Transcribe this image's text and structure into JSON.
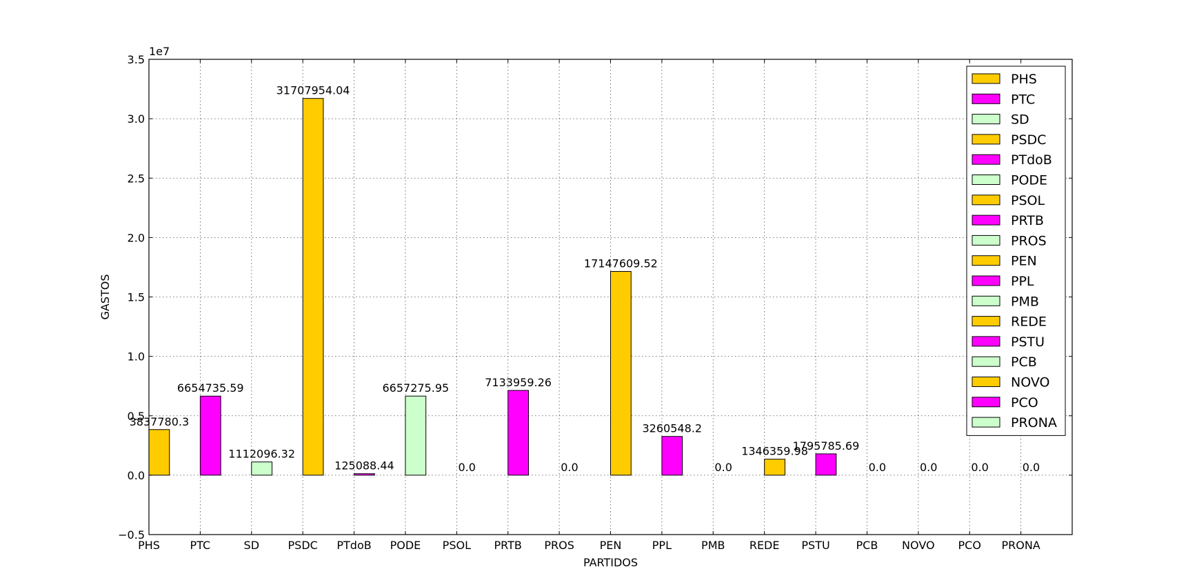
{
  "chart_data": {
    "type": "bar",
    "xlabel": "PARTIDOS",
    "ylabel": "GASTOS",
    "y_offset_label": "1e7",
    "scale_factor": 10000000,
    "ylim": [
      -0.5,
      3.5
    ],
    "yticks": [
      "−0.5",
      "0.0",
      "0.5",
      "1.0",
      "1.5",
      "2.0",
      "2.5",
      "3.0",
      "3.5"
    ],
    "grid": true,
    "legend_position": "top-right",
    "categories": [
      "PHS",
      "PTC",
      "SD",
      "PSDC",
      "PTdoB",
      "PODE",
      "PSOL",
      "PRTB",
      "PROS",
      "PEN",
      "PPL",
      "PMB",
      "REDE",
      "PSTU",
      "PCB",
      "NOVO",
      "PCO",
      "PRONA"
    ],
    "values": [
      3837780.3,
      6654735.59,
      1112096.32,
      31707954.04,
      125088.44,
      6657275.95,
      0.0,
      7133959.26,
      0.0,
      17147609.52,
      3260548.2,
      0.0,
      1346359.98,
      1795785.69,
      0.0,
      0.0,
      0.0,
      0.0
    ],
    "value_labels": [
      "3837780.3",
      "6654735.59",
      "1112096.32",
      "31707954.04",
      "125088.44",
      "6657275.95",
      "0.0",
      "7133959.26",
      "0.0",
      "17147609.52",
      "3260548.2",
      "0.0",
      "1346359.98",
      "1795785.69",
      "0.0",
      "0.0",
      "0.0",
      "0.0"
    ],
    "colors": [
      "#ffcc00",
      "#ff00ff",
      "#ccffcc"
    ]
  }
}
